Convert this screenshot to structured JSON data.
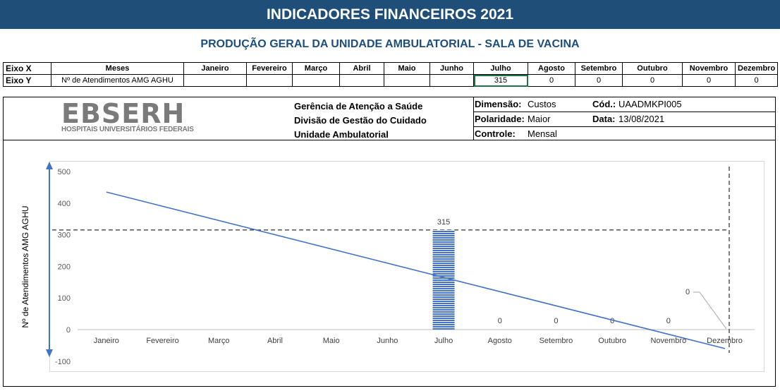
{
  "banner_title": "INDICADORES FINANCEIROS 2021",
  "subtitle": "PRODUÇÃO GERAL DA UNIDADE AMBULATORIAL - SALA DE VACINA",
  "axes_table": {
    "eixo_x_label": "Eixo X",
    "eixo_y_label": "Eixo Y",
    "meses_label": "Meses",
    "metric_label": "Nº de Atendimentos AMG AGHU",
    "months": [
      "Janeiro",
      "Fevereiro",
      "Março",
      "Abril",
      "Maio",
      "Junho",
      "Julho",
      "Agosto",
      "Setembro",
      "Outubro",
      "Novembro",
      "Dezembro"
    ],
    "values": [
      "",
      "",
      "",
      "",
      "",
      "",
      "315",
      "0",
      "0",
      "0",
      "0",
      "0"
    ]
  },
  "logo": {
    "text_main": "EBSER",
    "text_h": "H",
    "text_sub": "HOSPITAIS UNIVERSITÁRIOS FEDERAIS"
  },
  "org_lines": [
    "Gerência de Atenção a Saúde",
    "Divisão de Gestão do Cuidado",
    "Unidade Ambulatorial"
  ],
  "meta": {
    "dimensao_label": "Dimensão:",
    "dimensao_value": "Custos",
    "cod_label": "Cód.:",
    "cod_value": "UAADMKPI005",
    "polaridade_label": "Polaridade:",
    "polaridade_value": "Maior",
    "data_label": "Data:",
    "data_value": "13/08/2021",
    "controle_label": "Controle:",
    "controle_value": "Mensal"
  },
  "colors": {
    "banner": "#1f4e79",
    "bar": "#4472c4",
    "trend": "#4472c4",
    "grid": "#d9d9d9"
  },
  "chart_data": {
    "type": "bar",
    "ylabel": "Nº de Atendimentos AMG AGHU",
    "categories": [
      "Janeiro",
      "Fevereiro",
      "Março",
      "Abril",
      "Maio",
      "Junho",
      "Julho",
      "Agosto",
      "Setembro",
      "Outubro",
      "Novembro",
      "Dezembro"
    ],
    "values": [
      null,
      null,
      null,
      null,
      null,
      null,
      315,
      0,
      0,
      0,
      0,
      0
    ],
    "data_labels": [
      "",
      "",
      "",
      "",
      "",
      "",
      "315",
      "0",
      "0",
      "0",
      "0",
      "0"
    ],
    "yticks": [
      500,
      400,
      300,
      200,
      100,
      0,
      -100
    ],
    "ylim": [
      -100,
      500
    ],
    "reference_line_y": 315,
    "trendline": {
      "start": 435,
      "end": -60
    },
    "grid": false,
    "legend": "none"
  }
}
